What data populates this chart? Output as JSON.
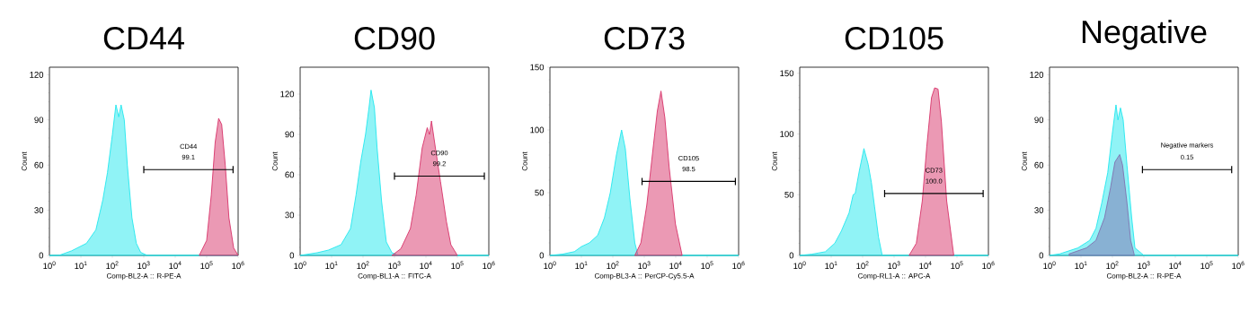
{
  "chart_data": [
    {
      "type": "area",
      "title": "CD44",
      "xlabel": "Comp-BL2-A :: R-PE-A",
      "ylabel": "Count",
      "log": "x",
      "xlim": [
        1,
        1000000
      ],
      "ylim": [
        0,
        125
      ],
      "xticks": [
        {
          "value": 1,
          "label": "10$^{0}$"
        },
        {
          "value": 10,
          "label": "10$^{1}$"
        },
        {
          "value": 100,
          "label": "10$^{2}$"
        },
        {
          "value": 1000,
          "label": "10$^{3}$"
        },
        {
          "value": 10000,
          "label": "10$^{4}$"
        },
        {
          "value": 100000,
          "label": "10$^{5}$"
        },
        {
          "value": 1000000,
          "label": "10$^{6}$"
        }
      ],
      "yticks": [
        0,
        30,
        60,
        90,
        120
      ],
      "series": [
        {
          "color": "#22e8ee",
          "x": [
            1,
            2,
            5,
            15,
            30,
            50,
            70,
            100,
            130,
            160,
            190,
            240,
            300,
            420,
            580,
            800,
            1300,
            1000000
          ],
          "values": [
            0,
            0,
            3,
            8,
            17,
            37,
            55,
            80,
            100,
            92,
            100,
            90,
            60,
            25,
            8,
            2,
            0,
            0
          ]
        },
        {
          "color": "#d8336a",
          "x": [
            58000,
            100000,
            140000,
            186000,
            240000,
            300000,
            390000,
            510000,
            720000,
            1000000
          ],
          "values": [
            0,
            10,
            40,
            75,
            91,
            87,
            60,
            25,
            5,
            0
          ]
        },
        {
          "type": "line",
          "color": "#000000",
          "x": [
            1000,
            690000
          ],
          "values": [
            57,
            57
          ]
        }
      ],
      "annotations": [
        "CD44",
        "99.1"
      ]
    },
    {
      "type": "area",
      "title": "CD90",
      "xlabel": "Comp-BL1-A :: FITC-A",
      "ylabel": "Count",
      "log": "x",
      "xlim": [
        1,
        1000000
      ],
      "ylim": [
        0,
        140
      ],
      "xticks": [
        {
          "value": 1,
          "label": "10$^{0}$"
        },
        {
          "value": 10,
          "label": "10$^{1}$"
        },
        {
          "value": 100,
          "label": "10$^{2}$"
        },
        {
          "value": 1000,
          "label": "10$^{3}$"
        },
        {
          "value": 10000,
          "label": "10$^{4}$"
        },
        {
          "value": 100000,
          "label": "10$^{5}$"
        },
        {
          "value": 1000000,
          "label": "10$^{6}$"
        }
      ],
      "yticks": [
        0,
        30,
        60,
        90,
        120
      ],
      "series": [
        {
          "color": "#22e8ee",
          "x": [
            1,
            3.5,
            8,
            20,
            40,
            60,
            85,
            120,
            155,
            180,
            230,
            280,
            390,
            550,
            830,
            1300,
            1000000
          ],
          "values": [
            0,
            2,
            4,
            8,
            20,
            45,
            70,
            90,
            110,
            123,
            110,
            80,
            40,
            10,
            2,
            0,
            0
          ]
        },
        {
          "color": "#d8336a",
          "x": [
            830,
            1600,
            3200,
            4900,
            7600,
            11000,
            13000,
            15000,
            20000,
            29000,
            45000,
            62000,
            100000
          ],
          "values": [
            0,
            5,
            20,
            45,
            80,
            95,
            90,
            100,
            80,
            55,
            25,
            8,
            0
          ]
        },
        {
          "type": "line",
          "color": "#000000",
          "x": [
            1000,
            720000
          ],
          "values": [
            59,
            59
          ]
        }
      ],
      "annotations": [
        "CD90",
        "99.2"
      ]
    },
    {
      "type": "area",
      "title": "CD73",
      "xlabel": "Comp-BL3-A :: PerCP-Cy5.5-A",
      "ylabel": "Count",
      "log": "x",
      "xlim": [
        1,
        1000000
      ],
      "ylim": [
        0,
        150
      ],
      "xticks": [
        {
          "value": 1,
          "label": "10$^{0}$"
        },
        {
          "value": 10,
          "label": "10$^{1}$"
        },
        {
          "value": 100,
          "label": "10$^{2}$"
        },
        {
          "value": 1000,
          "label": "10$^{3}$"
        },
        {
          "value": 10000,
          "label": "10$^{4}$"
        },
        {
          "value": 100000,
          "label": "10$^{5}$"
        },
        {
          "value": 1000000,
          "label": "10$^{6}$"
        }
      ],
      "yticks": [
        0,
        50,
        100,
        150
      ],
      "series": [
        {
          "color": "#22e8ee",
          "x": [
            1,
            2.5,
            6,
            10,
            18,
            33,
            54,
            83,
            130,
            190,
            250,
            350,
            500,
            630,
            1000000
          ],
          "values": [
            0,
            1,
            3,
            7,
            10,
            16,
            30,
            50,
            80,
            100,
            85,
            45,
            10,
            0,
            0
          ]
        },
        {
          "color": "#d8336a",
          "x": [
            500,
            780,
            1200,
            1900,
            2600,
            3400,
            4500,
            6200,
            9800,
            16000
          ],
          "values": [
            0,
            10,
            40,
            85,
            115,
            131,
            110,
            70,
            25,
            0
          ]
        },
        {
          "type": "line",
          "color": "#000000",
          "x": [
            850,
            790000
          ],
          "values": [
            59,
            59
          ]
        }
      ],
      "annotations": [
        "CD105",
        "98.5"
      ]
    },
    {
      "type": "area",
      "title": "CD105",
      "xlabel": "Comp-RL1-A :: APC-A",
      "ylabel": "Count",
      "log": "x",
      "xlim": [
        1,
        1000000
      ],
      "ylim": [
        0,
        155
      ],
      "xticks": [
        {
          "value": 1,
          "label": "10$^{0}$"
        },
        {
          "value": 10,
          "label": "10$^{1}$"
        },
        {
          "value": 100,
          "label": "10$^{2}$"
        },
        {
          "value": 1000,
          "label": "10$^{3}$"
        },
        {
          "value": 10000,
          "label": "10$^{4}$"
        },
        {
          "value": 100000,
          "label": "10$^{5}$"
        },
        {
          "value": 1000000,
          "label": "10$^{6}$"
        }
      ],
      "yticks": [
        0,
        50,
        100,
        150
      ],
      "series": [
        {
          "color": "#22e8ee",
          "x": [
            1,
            2.4,
            6.5,
            13,
            21,
            37,
            50,
            58,
            79,
            110,
            150,
            190,
            240,
            320,
            420,
            1000000
          ],
          "values": [
            0,
            1,
            3,
            10,
            20,
            35,
            50,
            51,
            70,
            88,
            75,
            60,
            40,
            15,
            0,
            0
          ]
        },
        {
          "color": "#d8336a",
          "x": [
            3000,
            5100,
            7900,
            11000,
            15500,
            19500,
            25000,
            32000,
            47000,
            79000
          ],
          "values": [
            0,
            10,
            45,
            90,
            130,
            138,
            137,
            110,
            45,
            0
          ]
        },
        {
          "type": "line",
          "color": "#000000",
          "x": [
            500,
            680000
          ],
          "values": [
            51,
            51
          ]
        }
      ],
      "annotations": [
        "CD73",
        "100.0"
      ]
    },
    {
      "type": "area",
      "title": "Negative",
      "xlabel": "Comp-BL2-A :: R-PE-A",
      "ylabel": "Count",
      "log": "x",
      "xlim": [
        1,
        1000000
      ],
      "ylim": [
        0,
        125
      ],
      "xticks": [
        {
          "value": 1,
          "label": "10$^{0}$"
        },
        {
          "value": 10,
          "label": "10$^{1}$"
        },
        {
          "value": 100,
          "label": "10$^{2}$"
        },
        {
          "value": 1000,
          "label": "10$^{3}$"
        },
        {
          "value": 10000,
          "label": "10$^{4}$"
        },
        {
          "value": 100000,
          "label": "10$^{5}$"
        },
        {
          "value": 1000000,
          "label": "10$^{6}$"
        }
      ],
      "yticks": [
        0,
        30,
        60,
        90,
        120
      ],
      "series": [
        {
          "color": "#22e8ee",
          "x": [
            1,
            2.1,
            8,
            19,
            30,
            46,
            71,
            98,
            130,
            150,
            180,
            220,
            290,
            410,
            520,
            1000,
            1000000
          ],
          "values": [
            0,
            1,
            5,
            10,
            18,
            35,
            55,
            80,
            100,
            90,
            98,
            90,
            60,
            25,
            5,
            0,
            0
          ]
        },
        {
          "color": "#8070b0",
          "x": [
            4.2,
            15,
            30,
            56,
            87,
            120,
            170,
            210,
            290,
            380,
            500
          ],
          "values": [
            1,
            5,
            10,
            25,
            45,
            62,
            67,
            60,
            35,
            10,
            0
          ]
        },
        {
          "type": "line",
          "color": "#000000",
          "x": [
            900,
            620000
          ],
          "values": [
            57,
            57
          ]
        }
      ],
      "annotations": [
        "Negative markers",
        "0.15"
      ]
    }
  ]
}
